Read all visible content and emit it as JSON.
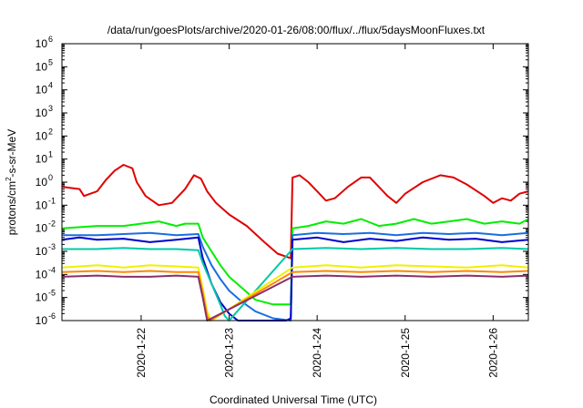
{
  "chart_data": {
    "type": "line",
    "title": "/data/run/goesPlots/archive/2020-01-26/08:00/flux/../flux/5daysMoonFluxes.txt",
    "xlabel": "Coordinated Universal Time (UTC)",
    "ylabel_parts": {
      "pre": "protons/cm",
      "sup": "2",
      "post": "-s-sr-MeV"
    },
    "y_scale": "log",
    "ylim_exp": [
      -6,
      6
    ],
    "y_tick_exponents": [
      -6,
      -5,
      -4,
      -3,
      -2,
      -1,
      0,
      1,
      2,
      3,
      4,
      5,
      6
    ],
    "y_tick_base": "10",
    "xlim_days": [
      21.1,
      26.4
    ],
    "x_ticks": [
      {
        "label": "2020-1-22",
        "day": 22
      },
      {
        "label": "2020-1-23",
        "day": 23
      },
      {
        "label": "2020-1-24",
        "day": 24
      },
      {
        "label": "2020-1-25",
        "day": 25
      },
      {
        "label": "2020-1-26",
        "day": 26
      }
    ],
    "grid": false,
    "legend": "none",
    "series": [
      {
        "color": "#e00000",
        "log10_values": [
          [
            21.1,
            -0.2
          ],
          [
            21.3,
            -0.3
          ],
          [
            21.35,
            -0.6
          ],
          [
            21.5,
            -0.4
          ],
          [
            21.6,
            0.1
          ],
          [
            21.7,
            0.5
          ],
          [
            21.8,
            0.75
          ],
          [
            21.9,
            0.6
          ],
          [
            21.95,
            0.0
          ],
          [
            22.05,
            -0.6
          ],
          [
            22.2,
            -1.0
          ],
          [
            22.35,
            -0.9
          ],
          [
            22.5,
            -0.3
          ],
          [
            22.6,
            0.3
          ],
          [
            22.68,
            0.15
          ],
          [
            22.75,
            -0.4
          ],
          [
            22.85,
            -0.9
          ],
          [
            23.0,
            -1.4
          ],
          [
            23.2,
            -1.9
          ],
          [
            23.4,
            -2.6
          ],
          [
            23.55,
            -3.1
          ],
          [
            23.7,
            -3.3
          ],
          [
            23.72,
            0.2
          ],
          [
            23.8,
            0.3
          ],
          [
            23.9,
            0.0
          ],
          [
            24.0,
            -0.4
          ],
          [
            24.1,
            -0.8
          ],
          [
            24.2,
            -0.7
          ],
          [
            24.35,
            -0.2
          ],
          [
            24.5,
            0.2
          ],
          [
            24.6,
            0.2
          ],
          [
            24.7,
            -0.2
          ],
          [
            24.8,
            -0.6
          ],
          [
            24.9,
            -0.9
          ],
          [
            25.0,
            -0.5
          ],
          [
            25.2,
            0.0
          ],
          [
            25.4,
            0.3
          ],
          [
            25.55,
            0.2
          ],
          [
            25.7,
            -0.1
          ],
          [
            25.9,
            -0.6
          ],
          [
            26.0,
            -0.9
          ],
          [
            26.1,
            -0.7
          ],
          [
            26.2,
            -0.8
          ],
          [
            26.3,
            -0.5
          ],
          [
            26.4,
            -0.4
          ]
        ]
      },
      {
        "color": "#00ee00",
        "log10_values": [
          [
            21.1,
            -2.0
          ],
          [
            21.5,
            -1.9
          ],
          [
            21.8,
            -1.9
          ],
          [
            22.0,
            -1.8
          ],
          [
            22.2,
            -1.7
          ],
          [
            22.4,
            -1.9
          ],
          [
            22.5,
            -1.8
          ],
          [
            22.65,
            -1.8
          ],
          [
            22.7,
            -2.4
          ],
          [
            22.8,
            -3.0
          ],
          [
            22.9,
            -3.6
          ],
          [
            23.0,
            -4.1
          ],
          [
            23.15,
            -4.6
          ],
          [
            23.3,
            -5.1
          ],
          [
            23.5,
            -5.3
          ],
          [
            23.7,
            -5.3
          ],
          [
            23.72,
            -2.0
          ],
          [
            23.9,
            -1.9
          ],
          [
            24.1,
            -1.7
          ],
          [
            24.3,
            -1.8
          ],
          [
            24.5,
            -1.6
          ],
          [
            24.7,
            -1.9
          ],
          [
            24.9,
            -1.8
          ],
          [
            25.1,
            -1.6
          ],
          [
            25.3,
            -1.8
          ],
          [
            25.5,
            -1.7
          ],
          [
            25.7,
            -1.6
          ],
          [
            25.9,
            -1.8
          ],
          [
            26.1,
            -1.7
          ],
          [
            26.3,
            -1.8
          ],
          [
            26.4,
            -1.6
          ]
        ]
      },
      {
        "color": "#1a6ee0",
        "log10_values": [
          [
            21.1,
            -2.3
          ],
          [
            21.5,
            -2.3
          ],
          [
            21.8,
            -2.25
          ],
          [
            22.1,
            -2.2
          ],
          [
            22.4,
            -2.3
          ],
          [
            22.65,
            -2.25
          ],
          [
            22.7,
            -2.8
          ],
          [
            22.8,
            -3.6
          ],
          [
            22.9,
            -4.2
          ],
          [
            23.0,
            -4.7
          ],
          [
            23.15,
            -5.2
          ],
          [
            23.3,
            -5.6
          ],
          [
            23.5,
            -5.9
          ],
          [
            23.7,
            -6.0
          ],
          [
            23.72,
            -2.3
          ],
          [
            24.0,
            -2.2
          ],
          [
            24.3,
            -2.25
          ],
          [
            24.6,
            -2.2
          ],
          [
            24.9,
            -2.3
          ],
          [
            25.2,
            -2.2
          ],
          [
            25.5,
            -2.25
          ],
          [
            25.8,
            -2.2
          ],
          [
            26.1,
            -2.3
          ],
          [
            26.4,
            -2.2
          ]
        ]
      },
      {
        "color": "#0000cc",
        "log10_values": [
          [
            21.1,
            -2.5
          ],
          [
            21.3,
            -2.4
          ],
          [
            21.5,
            -2.5
          ],
          [
            21.8,
            -2.45
          ],
          [
            22.1,
            -2.6
          ],
          [
            22.4,
            -2.5
          ],
          [
            22.65,
            -2.4
          ],
          [
            22.7,
            -3.3
          ],
          [
            22.8,
            -4.4
          ],
          [
            22.9,
            -5.2
          ],
          [
            23.0,
            -5.7
          ],
          [
            23.1,
            -6.0
          ],
          [
            23.65,
            -6.0
          ],
          [
            23.7,
            -5.9
          ],
          [
            23.72,
            -2.5
          ],
          [
            24.0,
            -2.4
          ],
          [
            24.3,
            -2.6
          ],
          [
            24.6,
            -2.45
          ],
          [
            24.9,
            -2.55
          ],
          [
            25.2,
            -2.4
          ],
          [
            25.5,
            -2.5
          ],
          [
            25.8,
            -2.45
          ],
          [
            26.1,
            -2.6
          ],
          [
            26.4,
            -2.5
          ]
        ]
      },
      {
        "color": "#00c8a8",
        "log10_values": [
          [
            21.1,
            -2.9
          ],
          [
            21.5,
            -2.9
          ],
          [
            21.8,
            -2.85
          ],
          [
            22.1,
            -2.9
          ],
          [
            22.4,
            -2.9
          ],
          [
            22.65,
            -2.95
          ],
          [
            22.7,
            -3.5
          ],
          [
            22.8,
            -4.4
          ],
          [
            22.9,
            -5.3
          ],
          [
            22.95,
            -5.8
          ],
          [
            23.0,
            -6.0
          ],
          [
            23.72,
            -2.9
          ],
          [
            24.1,
            -2.85
          ],
          [
            24.5,
            -2.9
          ],
          [
            24.9,
            -2.85
          ],
          [
            25.3,
            -2.9
          ],
          [
            25.7,
            -2.9
          ],
          [
            26.1,
            -2.85
          ],
          [
            26.4,
            -2.9
          ]
        ]
      },
      {
        "color": "#f0f000",
        "log10_values": [
          [
            21.1,
            -3.7
          ],
          [
            21.5,
            -3.6
          ],
          [
            21.8,
            -3.7
          ],
          [
            22.1,
            -3.6
          ],
          [
            22.4,
            -3.65
          ],
          [
            22.65,
            -3.7
          ],
          [
            22.7,
            -4.6
          ],
          [
            22.75,
            -5.6
          ],
          [
            22.8,
            -6.0
          ],
          [
            23.72,
            -3.7
          ],
          [
            24.1,
            -3.6
          ],
          [
            24.5,
            -3.7
          ],
          [
            24.9,
            -3.6
          ],
          [
            25.3,
            -3.65
          ],
          [
            25.7,
            -3.7
          ],
          [
            26.1,
            -3.6
          ],
          [
            26.4,
            -3.7
          ]
        ]
      },
      {
        "color": "#ff8800",
        "log10_values": [
          [
            21.1,
            -3.9
          ],
          [
            21.5,
            -3.85
          ],
          [
            21.8,
            -3.9
          ],
          [
            22.1,
            -3.85
          ],
          [
            22.4,
            -3.9
          ],
          [
            22.65,
            -3.9
          ],
          [
            22.7,
            -4.8
          ],
          [
            22.75,
            -5.8
          ],
          [
            22.78,
            -6.0
          ],
          [
            23.72,
            -3.9
          ],
          [
            24.1,
            -3.85
          ],
          [
            24.5,
            -3.9
          ],
          [
            24.9,
            -3.85
          ],
          [
            25.3,
            -3.9
          ],
          [
            25.7,
            -3.85
          ],
          [
            26.1,
            -3.9
          ],
          [
            26.4,
            -3.85
          ]
        ]
      },
      {
        "color": "#8b2f6a",
        "log10_values": [
          [
            21.1,
            -4.1
          ],
          [
            21.5,
            -4.05
          ],
          [
            21.8,
            -4.1
          ],
          [
            22.1,
            -4.1
          ],
          [
            22.4,
            -4.05
          ],
          [
            22.65,
            -4.1
          ],
          [
            22.7,
            -5.0
          ],
          [
            22.75,
            -6.0
          ],
          [
            23.72,
            -4.1
          ],
          [
            24.1,
            -4.05
          ],
          [
            24.5,
            -4.1
          ],
          [
            24.9,
            -4.05
          ],
          [
            25.3,
            -4.1
          ],
          [
            25.7,
            -4.05
          ],
          [
            26.1,
            -4.1
          ],
          [
            26.4,
            -4.05
          ]
        ]
      }
    ]
  }
}
